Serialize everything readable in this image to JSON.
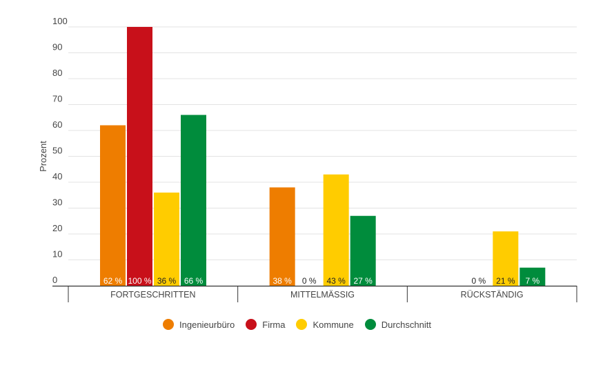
{
  "chart_data": {
    "type": "bar",
    "title": "",
    "xlabel": "",
    "ylabel": "Prozent",
    "ylim": [
      0,
      100
    ],
    "yticks": [
      0,
      10,
      20,
      30,
      40,
      50,
      60,
      70,
      80,
      90,
      100
    ],
    "grid": true,
    "legend_position": "bottom",
    "categories": [
      "FORTGESCHRITTEN",
      "MITTELMÄSSIG",
      "RÜCKSTÄNDIG"
    ],
    "series": [
      {
        "name": "Ingenieurbüro",
        "color": "#ee7d00",
        "values": [
          62,
          38,
          0
        ],
        "labels": [
          "62 %",
          "38 %",
          ""
        ]
      },
      {
        "name": "Firma",
        "color": "#c8101a",
        "values": [
          100,
          0,
          0
        ],
        "labels": [
          "100 %",
          "0 %",
          "0 %"
        ]
      },
      {
        "name": "Kommune",
        "color": "#ffcc00",
        "values": [
          36,
          43,
          21
        ],
        "labels": [
          "36 %",
          "43 %",
          "21 %"
        ]
      },
      {
        "name": "Durchschnitt",
        "color": "#008c3c",
        "values": [
          66,
          27,
          7
        ],
        "labels": [
          "66 %",
          "27 %",
          "7 %"
        ]
      }
    ]
  }
}
